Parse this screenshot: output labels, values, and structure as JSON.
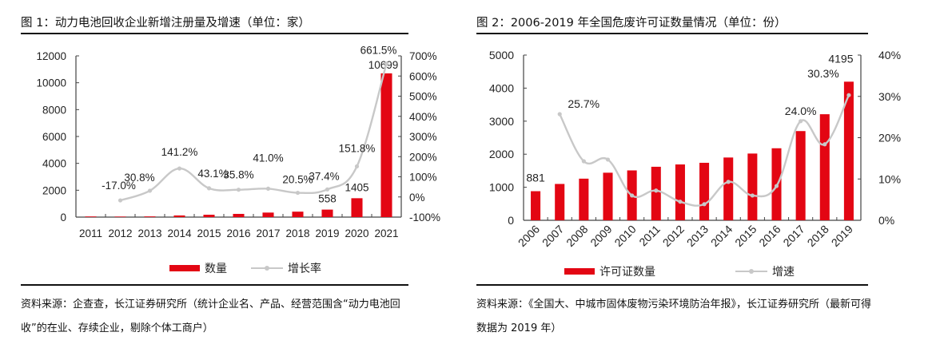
{
  "figure1": {
    "title": "图 1：动力电池回收企业新增注册量及增速（单位：家）",
    "source": "资料来源：企查查，长江证券研究所（统计企业名、产品、经营范围含“动力电池回收”的在业、存续企业，剔除个体工商户）",
    "legend": {
      "bar": "数量",
      "line": "增长率"
    }
  },
  "figure2": {
    "title": "图 2：2006-2019 年全国危废许可证数量情况（单位：份）",
    "source": "资料来源：《全国大、中城市固体废物污染环境防治年报》，长江证券研究所（最新可得数据为 2019 年）",
    "legend": {
      "bar": "许可证数量",
      "line": "增速"
    }
  },
  "colors": {
    "bar": "#e30613",
    "line": "#c8c8c8",
    "axis": "#444444"
  },
  "chart_data": [
    {
      "type": "bar",
      "title": "动力电池回收企业新增注册量及增速（单位：家）",
      "categories": [
        "2011",
        "2012",
        "2013",
        "2014",
        "2015",
        "2016",
        "2017",
        "2018",
        "2019",
        "2020",
        "2021"
      ],
      "series": [
        {
          "name": "数量",
          "type": "bar",
          "axis": "left",
          "values": [
            47,
            39,
            51,
            123,
            176,
            239,
            337,
            406,
            558,
            1405,
            10699
          ],
          "labels": [
            "",
            "",
            "",
            "",
            "",
            "",
            "",
            "",
            "558",
            "1405",
            "10699"
          ]
        },
        {
          "name": "增长率",
          "type": "line",
          "axis": "right",
          "unit": "%",
          "values": [
            null,
            -17.0,
            30.8,
            141.2,
            43.1,
            35.8,
            41.0,
            20.5,
            37.4,
            151.8,
            661.5
          ],
          "labels": [
            "",
            "-17.0%",
            "30.8%",
            "141.2%",
            "43.1%",
            "35.8%",
            "41.0%",
            "20.5%",
            "37.4%",
            "151.8%",
            "661.5%"
          ]
        }
      ],
      "y_left": {
        "min": 0,
        "max": 12000,
        "ticks": [
          "0",
          "2000",
          "4000",
          "6000",
          "8000",
          "10000",
          "12000"
        ]
      },
      "y_right": {
        "min": -100,
        "max": 700,
        "ticks": [
          "-100%",
          "0%",
          "100%",
          "200%",
          "300%",
          "400%",
          "500%",
          "600%",
          "700%"
        ]
      },
      "legend_position": "bottom",
      "grid": false
    },
    {
      "type": "bar",
      "title": "2006-2019 年全国危废许可证数量情况（单位：份）",
      "categories": [
        "2006",
        "2007",
        "2008",
        "2009",
        "2010",
        "2011",
        "2012",
        "2013",
        "2014",
        "2015",
        "2016",
        "2017",
        "2018",
        "2019"
      ],
      "series": [
        {
          "name": "许可证数量",
          "type": "bar",
          "axis": "left",
          "values": [
            881,
            1100,
            1260,
            1440,
            1510,
            1620,
            1690,
            1740,
            1900,
            2020,
            2180,
            2700,
            3210,
            4195
          ],
          "labels": [
            "881",
            "",
            "",
            "",
            "",
            "",
            "",
            "",
            "",
            "",
            "",
            "",
            "",
            "4195"
          ]
        },
        {
          "name": "增速",
          "type": "line",
          "axis": "right",
          "unit": "%",
          "values": [
            null,
            25.7,
            14.3,
            14.7,
            6.0,
            7.2,
            4.5,
            3.9,
            9.3,
            6.0,
            8.3,
            24.0,
            18.4,
            30.3
          ],
          "labels": [
            "",
            "25.7%",
            "",
            "",
            "",
            "",
            "",
            "",
            "",
            "",
            "",
            "24.0%",
            "",
            "30.3%"
          ]
        }
      ],
      "y_left": {
        "min": 0,
        "max": 5000,
        "ticks": [
          "0",
          "1000",
          "2000",
          "3000",
          "4000",
          "5000"
        ]
      },
      "y_right": {
        "min": 0,
        "max": 40,
        "ticks": [
          "0%",
          "10%",
          "20%",
          "30%",
          "40%"
        ]
      },
      "legend_position": "bottom",
      "grid": false
    }
  ]
}
